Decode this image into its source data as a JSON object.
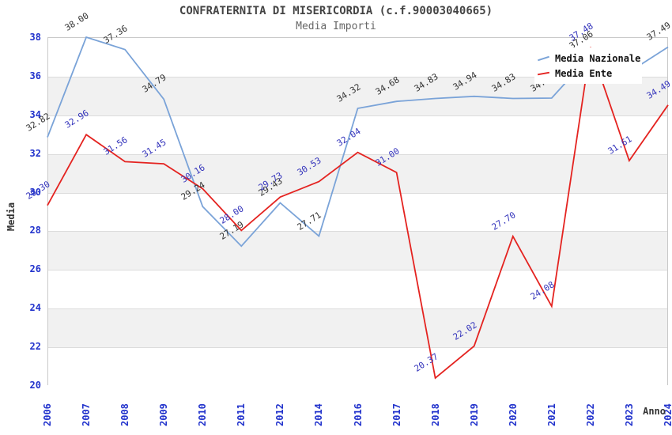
{
  "title": "CONFRATERNITA DI MISERICORDIA (c.f.90003040665)",
  "subtitle": "Media Importi",
  "legend": {
    "position": "top-right",
    "items": [
      {
        "label": "Media Nazionale",
        "color": "#7aa3d8"
      },
      {
        "label": "Media Ente",
        "color": "#e42320"
      }
    ]
  },
  "colors": {
    "background": "#ffffff",
    "band_white": "#ffffff",
    "band_gray": "#f1f1f1",
    "gridline": "#dcdcdc",
    "plot_border": "#c9c9c9",
    "tick_text": "#2233cc",
    "national_line": "#7aa3d8",
    "national_label_text": "#333333",
    "ente_line": "#e42320",
    "ente_label_text": "#3333bb",
    "title_text": "#444444",
    "subtitle_text": "#666666"
  },
  "chart_data": {
    "type": "line",
    "title": "CONFRATERNITA DI MISERICORDIA (c.f.90003040665)",
    "subtitle": "Media Importi",
    "xlabel": "Anno",
    "ylabel": "Media",
    "ylim": [
      20,
      38
    ],
    "ytick_step": 2,
    "yticks": [
      "38",
      "36",
      "34",
      "32",
      "30",
      "28",
      "26",
      "24",
      "22",
      "20"
    ],
    "grid": "horizontal gridlines every 2 units with alternating white/gray bands",
    "legend_position": "top-right",
    "categories": [
      "2006",
      "2007",
      "2008",
      "2009",
      "2010",
      "2011",
      "2012",
      "2014",
      "2016",
      "2017",
      "2018",
      "2019",
      "2020",
      "2021",
      "2022",
      "2023",
      "2024"
    ],
    "series": [
      {
        "name": "Media Nazionale",
        "color": "#7aa3d8",
        "label_color": "#333333",
        "values": [
          32.82,
          38.0,
          37.36,
          34.79,
          29.24,
          27.19,
          29.43,
          27.71,
          34.32,
          34.68,
          34.83,
          34.94,
          34.83,
          34.85,
          37.06,
          36.2,
          37.49
        ],
        "labels": [
          "32.82",
          "38.00",
          "37.36",
          "34.79",
          "29.24",
          "27.19",
          "29.43",
          "27.71",
          "34.32",
          "34.68",
          "34.83",
          "34.94",
          "34.83",
          "34.85",
          "37.06",
          "",
          "37.49"
        ]
      },
      {
        "name": "Media Ente",
        "color": "#e42320",
        "label_color": "#3333bb",
        "values": [
          29.3,
          32.96,
          31.56,
          31.45,
          30.16,
          28.0,
          29.73,
          30.53,
          32.04,
          31.0,
          20.37,
          22.02,
          27.7,
          24.08,
          37.48,
          31.61,
          34.49
        ],
        "labels": [
          "29.30",
          "32.96",
          "31.56",
          "31.45",
          "30.16",
          "28.00",
          "29.73",
          "30.53",
          "32.04",
          "31.00",
          "20.37",
          "22.02",
          "27.70",
          "24.08",
          "37.48",
          "31.61",
          "34.49"
        ]
      }
    ]
  }
}
